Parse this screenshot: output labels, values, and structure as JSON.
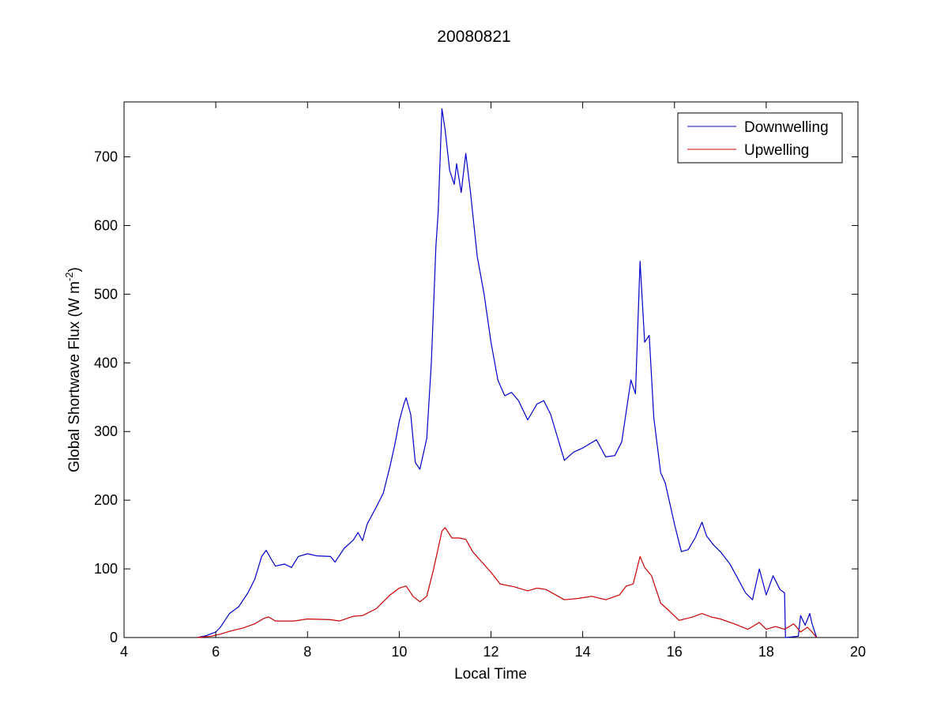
{
  "chart_data": {
    "type": "line",
    "title": "20080821",
    "xlabel": "Local Time",
    "ylabel": {
      "prefix": "Global Shortwave Flux (W m",
      "sup": "-2",
      "suffix": ")"
    },
    "xlim": [
      4,
      20
    ],
    "ylim": [
      0,
      780
    ],
    "xticks": [
      4,
      6,
      8,
      10,
      12,
      14,
      16,
      18,
      20
    ],
    "yticks": [
      0,
      100,
      200,
      300,
      400,
      500,
      600,
      700
    ],
    "grid": false,
    "legend_position": "top-right",
    "series": [
      {
        "name": "Downwelling",
        "color": "#0000cc",
        "points": [
          [
            5.6,
            0
          ],
          [
            5.8,
            3
          ],
          [
            6.0,
            8
          ],
          [
            6.1,
            15
          ],
          [
            6.2,
            25
          ],
          [
            6.3,
            35
          ],
          [
            6.5,
            45
          ],
          [
            6.7,
            65
          ],
          [
            6.85,
            85
          ],
          [
            7.0,
            118
          ],
          [
            7.1,
            127
          ],
          [
            7.2,
            115
          ],
          [
            7.3,
            104
          ],
          [
            7.5,
            107
          ],
          [
            7.65,
            102
          ],
          [
            7.8,
            118
          ],
          [
            8.0,
            122
          ],
          [
            8.2,
            119
          ],
          [
            8.5,
            118
          ],
          [
            8.6,
            110
          ],
          [
            8.8,
            130
          ],
          [
            9.0,
            142
          ],
          [
            9.1,
            153
          ],
          [
            9.2,
            141
          ],
          [
            9.3,
            165
          ],
          [
            9.5,
            190
          ],
          [
            9.65,
            210
          ],
          [
            9.8,
            250
          ],
          [
            9.9,
            280
          ],
          [
            10.0,
            315
          ],
          [
            10.1,
            340
          ],
          [
            10.15,
            349
          ],
          [
            10.25,
            325
          ],
          [
            10.35,
            255
          ],
          [
            10.45,
            245
          ],
          [
            10.6,
            290
          ],
          [
            10.7,
            400
          ],
          [
            10.8,
            570
          ],
          [
            10.85,
            620
          ],
          [
            10.93,
            770
          ],
          [
            11.0,
            740
          ],
          [
            11.1,
            680
          ],
          [
            11.2,
            660
          ],
          [
            11.25,
            690
          ],
          [
            11.35,
            648
          ],
          [
            11.45,
            705
          ],
          [
            11.55,
            650
          ],
          [
            11.7,
            555
          ],
          [
            11.85,
            500
          ],
          [
            12.0,
            430
          ],
          [
            12.15,
            375
          ],
          [
            12.3,
            352
          ],
          [
            12.45,
            357
          ],
          [
            12.6,
            345
          ],
          [
            12.8,
            317
          ],
          [
            13.0,
            340
          ],
          [
            13.15,
            345
          ],
          [
            13.3,
            325
          ],
          [
            13.6,
            258
          ],
          [
            13.8,
            270
          ],
          [
            14.0,
            276
          ],
          [
            14.15,
            282
          ],
          [
            14.3,
            288
          ],
          [
            14.5,
            263
          ],
          [
            14.7,
            265
          ],
          [
            14.85,
            285
          ],
          [
            14.95,
            330
          ],
          [
            15.05,
            375
          ],
          [
            15.15,
            355
          ],
          [
            15.25,
            548
          ],
          [
            15.35,
            430
          ],
          [
            15.45,
            440
          ],
          [
            15.55,
            320
          ],
          [
            15.7,
            240
          ],
          [
            15.8,
            225
          ],
          [
            16.0,
            165
          ],
          [
            16.15,
            125
          ],
          [
            16.3,
            128
          ],
          [
            16.45,
            145
          ],
          [
            16.6,
            168
          ],
          [
            16.7,
            148
          ],
          [
            16.85,
            135
          ],
          [
            17.0,
            125
          ],
          [
            17.2,
            108
          ],
          [
            17.35,
            90
          ],
          [
            17.55,
            65
          ],
          [
            17.7,
            55
          ],
          [
            17.85,
            100
          ],
          [
            18.0,
            62
          ],
          [
            18.15,
            90
          ],
          [
            18.3,
            70
          ],
          [
            18.4,
            65
          ],
          [
            18.42,
            0
          ],
          [
            18.7,
            2
          ],
          [
            18.75,
            32
          ],
          [
            18.85,
            18
          ],
          [
            18.95,
            35
          ],
          [
            19.0,
            20
          ],
          [
            19.1,
            0
          ]
        ]
      },
      {
        "name": "Upwelling",
        "color": "#cc0000",
        "points": [
          [
            5.6,
            0
          ],
          [
            5.9,
            2
          ],
          [
            6.1,
            5
          ],
          [
            6.3,
            9
          ],
          [
            6.6,
            14
          ],
          [
            6.85,
            20
          ],
          [
            7.05,
            28
          ],
          [
            7.15,
            30
          ],
          [
            7.3,
            24
          ],
          [
            7.7,
            24
          ],
          [
            8.0,
            27
          ],
          [
            8.5,
            26
          ],
          [
            8.7,
            24
          ],
          [
            9.0,
            31
          ],
          [
            9.2,
            32
          ],
          [
            9.5,
            42
          ],
          [
            9.8,
            62
          ],
          [
            10.0,
            72
          ],
          [
            10.15,
            75
          ],
          [
            10.3,
            60
          ],
          [
            10.45,
            52
          ],
          [
            10.6,
            60
          ],
          [
            10.75,
            100
          ],
          [
            10.93,
            155
          ],
          [
            11.0,
            160
          ],
          [
            11.15,
            145
          ],
          [
            11.3,
            145
          ],
          [
            11.45,
            143
          ],
          [
            11.6,
            125
          ],
          [
            11.8,
            110
          ],
          [
            12.0,
            95
          ],
          [
            12.2,
            78
          ],
          [
            12.5,
            74
          ],
          [
            12.8,
            68
          ],
          [
            13.0,
            72
          ],
          [
            13.2,
            70
          ],
          [
            13.6,
            55
          ],
          [
            13.9,
            57
          ],
          [
            14.2,
            60
          ],
          [
            14.5,
            55
          ],
          [
            14.8,
            62
          ],
          [
            14.95,
            75
          ],
          [
            15.1,
            78
          ],
          [
            15.25,
            118
          ],
          [
            15.35,
            102
          ],
          [
            15.5,
            90
          ],
          [
            15.7,
            50
          ],
          [
            15.9,
            38
          ],
          [
            16.1,
            25
          ],
          [
            16.4,
            30
          ],
          [
            16.6,
            35
          ],
          [
            16.8,
            30
          ],
          [
            17.0,
            27
          ],
          [
            17.3,
            20
          ],
          [
            17.6,
            12
          ],
          [
            17.85,
            22
          ],
          [
            18.0,
            12
          ],
          [
            18.2,
            16
          ],
          [
            18.4,
            12
          ],
          [
            18.6,
            20
          ],
          [
            18.75,
            8
          ],
          [
            18.9,
            15
          ],
          [
            19.0,
            8
          ],
          [
            19.1,
            0
          ]
        ]
      }
    ]
  }
}
